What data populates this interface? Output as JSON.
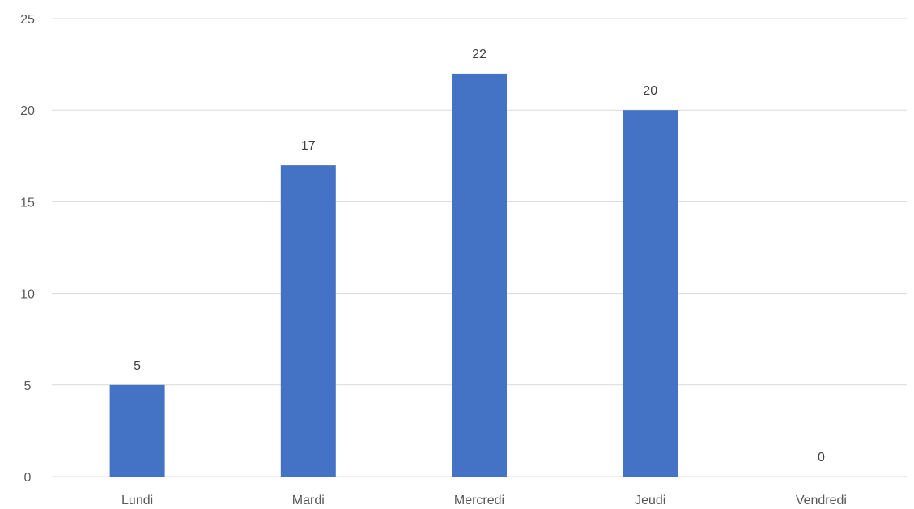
{
  "chart_data": {
    "type": "bar",
    "categories": [
      "Lundi",
      "Mardi",
      "Mercredi",
      "Jeudi",
      "Vendredi"
    ],
    "values": [
      5,
      17,
      22,
      20,
      0
    ],
    "ylim": [
      0,
      25
    ],
    "yticks": [
      0,
      5,
      10,
      15,
      20,
      25
    ],
    "grid": true,
    "data_labels": true,
    "legend": "none",
    "bar_color": "#4472c4",
    "grid_color": "#d9d9d9",
    "text_color": "#595959"
  }
}
